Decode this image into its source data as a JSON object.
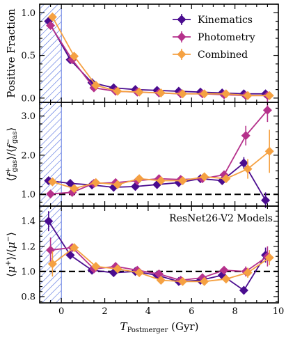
{
  "chart_data": {
    "type": "line",
    "xlabel": "T_Postmerger (Gyr)",
    "xlim": [
      -1.0,
      10.0
    ],
    "xticks": [
      0,
      2,
      4,
      6,
      8,
      10
    ],
    "x": [
      -0.5,
      0.5,
      1.5,
      2.5,
      3.5,
      4.5,
      5.5,
      6.5,
      7.5,
      8.5,
      9.5
    ],
    "shaded_region": {
      "x_range": [
        -1.0,
        0.0
      ],
      "style": "hatched",
      "color": "#3b5bdb"
    },
    "colors": {
      "Kinematics": "#4a0c8f",
      "Photometry": "#b5318b",
      "Combined": "#f5a142"
    },
    "legend": {
      "placement": "top-right",
      "entries": [
        "Kinematics",
        "Photometry",
        "Combined"
      ]
    },
    "panels": [
      {
        "name": "top",
        "ylabel": "Positive Fraction",
        "ylim": [
          -0.05,
          1.1
        ],
        "yticks": [
          0.0,
          0.5,
          1.0
        ],
        "ytick_labels": [
          "0.0",
          "0.5",
          "1.0"
        ],
        "reference_line": null,
        "annotation": "",
        "series": [
          {
            "name": "Kinematics",
            "values": [
              0.9,
              0.45,
              0.18,
              0.12,
              0.1,
              0.09,
              0.08,
              0.07,
              0.06,
              0.05,
              0.05
            ],
            "errors": [
              0.03,
              0.03,
              0.02,
              0.02,
              0.02,
              0.02,
              0.02,
              0.02,
              0.02,
              0.02,
              0.02
            ]
          },
          {
            "name": "Photometry",
            "values": [
              0.85,
              0.45,
              0.12,
              0.08,
              0.07,
              0.06,
              0.05,
              0.05,
              0.04,
              0.03,
              0.03
            ],
            "errors": [
              0.03,
              0.03,
              0.02,
              0.02,
              0.02,
              0.02,
              0.02,
              0.02,
              0.02,
              0.02,
              0.02
            ]
          },
          {
            "name": "Combined",
            "values": [
              0.95,
              0.49,
              0.15,
              0.08,
              0.07,
              0.06,
              0.05,
              0.05,
              0.05,
              0.03,
              0.03
            ],
            "errors": [
              0.03,
              0.03,
              0.02,
              0.02,
              0.02,
              0.02,
              0.02,
              0.02,
              0.02,
              0.02,
              0.02
            ]
          }
        ]
      },
      {
        "name": "middle",
        "ylabel": "⟨f⁺_gas⟩/⟨f⁻_gas⟩",
        "ylim": [
          0.7,
          3.35
        ],
        "yticks": [
          1.0,
          2.0,
          3.0
        ],
        "ytick_labels": [
          "1.0",
          "2.0",
          "3.0"
        ],
        "reference_line": 1.0,
        "annotation": "",
        "series": [
          {
            "name": "Kinematics",
            "values": [
              1.35,
              1.28,
              1.24,
              1.18,
              1.2,
              1.25,
              1.3,
              1.4,
              1.35,
              1.8,
              0.85
            ],
            "errors": [
              0.1,
              0.05,
              0.05,
              0.04,
              0.04,
              0.04,
              0.05,
              0.06,
              0.08,
              0.15,
              0.2
            ]
          },
          {
            "name": "Photometry",
            "values": [
              1.01,
              1.05,
              1.28,
              1.3,
              1.35,
              1.4,
              1.38,
              1.4,
              1.5,
              2.5,
              3.15
            ],
            "errors": [
              0.05,
              0.05,
              0.05,
              0.04,
              0.04,
              0.04,
              0.05,
              0.06,
              0.1,
              0.25,
              0.3
            ]
          },
          {
            "name": "Combined",
            "values": [
              1.32,
              1.15,
              1.3,
              1.25,
              1.4,
              1.35,
              1.35,
              1.45,
              1.4,
              1.65,
              2.1
            ],
            "errors": [
              0.05,
              0.05,
              0.05,
              0.04,
              0.04,
              0.04,
              0.05,
              0.06,
              0.1,
              0.25,
              0.55
            ]
          }
        ]
      },
      {
        "name": "bottom",
        "ylabel": "⟨μ⁺⟩/⟨μ⁻⟩",
        "ylim": [
          0.75,
          1.52
        ],
        "yticks": [
          0.8,
          1.0,
          1.2,
          1.4
        ],
        "ytick_labels": [
          "0.8",
          "1.0",
          "1.2",
          "1.4"
        ],
        "reference_line": 1.0,
        "annotation": "ResNet26-V2 Models",
        "series": [
          {
            "name": "Kinematics",
            "values": [
              1.4,
              1.13,
              1.01,
              0.99,
              1.0,
              0.97,
              0.92,
              0.93,
              0.97,
              0.85,
              1.13
            ],
            "errors": [
              0.08,
              0.03,
              0.02,
              0.02,
              0.02,
              0.02,
              0.02,
              0.02,
              0.03,
              0.03,
              0.06
            ]
          },
          {
            "name": "Photometry",
            "values": [
              1.17,
              1.19,
              1.02,
              1.04,
              1.01,
              0.98,
              0.93,
              0.95,
              1.01,
              1.0,
              1.12
            ],
            "errors": [
              0.1,
              0.03,
              0.02,
              0.02,
              0.02,
              0.02,
              0.02,
              0.02,
              0.03,
              0.04,
              0.08
            ]
          },
          {
            "name": "Combined",
            "values": [
              1.06,
              1.19,
              1.04,
              1.02,
              0.99,
              0.93,
              0.92,
              0.92,
              0.94,
              0.99,
              1.11
            ],
            "errors": [
              0.1,
              0.03,
              0.02,
              0.02,
              0.02,
              0.02,
              0.02,
              0.02,
              0.03,
              0.04,
              0.06
            ]
          }
        ]
      }
    ]
  }
}
